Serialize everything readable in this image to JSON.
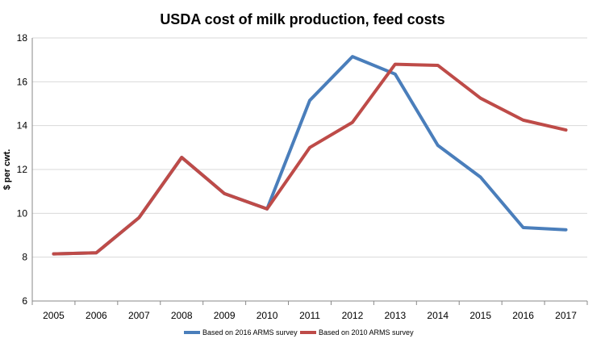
{
  "chart_data": {
    "type": "line",
    "title": "USDA cost of milk production, feed costs",
    "xlabel": "",
    "ylabel": "$ per cwt.",
    "ylim": [
      6,
      18
    ],
    "yticks": [
      6,
      8,
      10,
      12,
      14,
      16,
      18
    ],
    "grid": true,
    "legend": "bottom",
    "categories": [
      "2005",
      "2006",
      "2007",
      "2008",
      "2009",
      "2010",
      "2011",
      "2012",
      "2013",
      "2014",
      "2015",
      "2016",
      "2017"
    ],
    "series": [
      {
        "name": "Based on 2016 ARMS survey",
        "color": "#4a7ebb",
        "values": [
          8.15,
          8.2,
          9.8,
          12.55,
          10.9,
          10.2,
          15.15,
          17.15,
          16.35,
          13.1,
          11.65,
          9.35,
          9.25
        ]
      },
      {
        "name": "Based on 2010 ARMS survey",
        "color": "#be4b48",
        "values": [
          8.15,
          8.2,
          9.8,
          12.55,
          10.9,
          10.2,
          13.0,
          14.15,
          16.8,
          16.75,
          15.25,
          14.25,
          13.8
        ]
      }
    ]
  }
}
